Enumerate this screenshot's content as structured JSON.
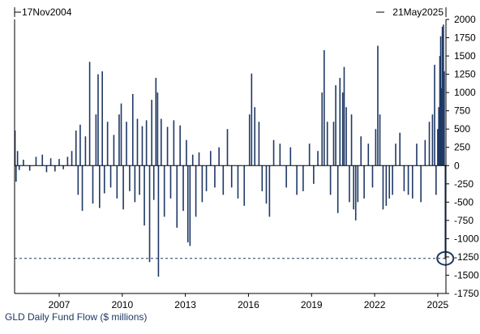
{
  "caption": "GLD Daily Fund Flow ($ millions)",
  "colors": {
    "bar": "#1f3864",
    "axis": "#000000",
    "zero_line": "#000000",
    "reference_line": "#1f3864",
    "highlight": "#1f3864"
  },
  "chart_data": {
    "type": "bar",
    "title": "",
    "xlabel": "",
    "ylabel": "",
    "start_label": "17Nov2004",
    "end_label": "21May2025",
    "x_range": [
      2004.88,
      2025.39
    ],
    "ylim": [
      -1750,
      2000
    ],
    "y_ticks": [
      2000,
      1750,
      1500,
      1250,
      1000,
      750,
      500,
      250,
      0,
      -250,
      -500,
      -750,
      -1000,
      -1250,
      -1500,
      -1750
    ],
    "x_ticks": [
      {
        "year": 2007,
        "label": "2007"
      },
      {
        "year": 2010,
        "label": "2010"
      },
      {
        "year": 2013,
        "label": "2013"
      },
      {
        "year": 2016,
        "label": "2016"
      },
      {
        "year": 2019,
        "label": "2019"
      },
      {
        "year": 2022,
        "label": "2022"
      },
      {
        "year": 2025,
        "label": "2025"
      }
    ],
    "reference_line": {
      "value": -1270,
      "style": "dashed"
    },
    "highlight": {
      "x": 2025.36,
      "y": -1270,
      "shape": "circle"
    },
    "series": [
      {
        "flows": [
          [
            2004.9,
            480
          ],
          [
            2004.95,
            -220
          ],
          [
            2005.02,
            200
          ],
          [
            2005.1,
            -60
          ],
          [
            2005.3,
            80
          ],
          [
            2005.6,
            -70
          ],
          [
            2005.9,
            120
          ],
          [
            2006.2,
            150
          ],
          [
            2006.4,
            -90
          ],
          [
            2006.6,
            100
          ],
          [
            2006.8,
            -80
          ],
          [
            2007.0,
            90
          ],
          [
            2007.2,
            -50
          ],
          [
            2007.4,
            120
          ],
          [
            2007.6,
            200
          ],
          [
            2007.8,
            480
          ],
          [
            2007.9,
            -400
          ],
          [
            2008.0,
            560
          ],
          [
            2008.1,
            -620
          ],
          [
            2008.25,
            400
          ],
          [
            2008.45,
            1420
          ],
          [
            2008.6,
            -520
          ],
          [
            2008.75,
            700
          ],
          [
            2008.85,
            1250
          ],
          [
            2008.92,
            -580
          ],
          [
            2009.05,
            1290
          ],
          [
            2009.15,
            -380
          ],
          [
            2009.3,
            600
          ],
          [
            2009.45,
            -300
          ],
          [
            2009.6,
            420
          ],
          [
            2009.75,
            -450
          ],
          [
            2009.85,
            700
          ],
          [
            2009.95,
            850
          ],
          [
            2010.05,
            -600
          ],
          [
            2010.2,
            600
          ],
          [
            2010.35,
            -350
          ],
          [
            2010.5,
            980
          ],
          [
            2010.6,
            -500
          ],
          [
            2010.72,
            640
          ],
          [
            2010.82,
            -400
          ],
          [
            2010.95,
            540
          ],
          [
            2011.05,
            -820
          ],
          [
            2011.15,
            620
          ],
          [
            2011.3,
            -1320
          ],
          [
            2011.4,
            900
          ],
          [
            2011.5,
            -470
          ],
          [
            2011.6,
            1200
          ],
          [
            2011.68,
            1000
          ],
          [
            2011.72,
            -1520
          ],
          [
            2011.85,
            640
          ],
          [
            2012.0,
            -700
          ],
          [
            2012.15,
            530
          ],
          [
            2012.3,
            -450
          ],
          [
            2012.45,
            620
          ],
          [
            2012.6,
            -850
          ],
          [
            2012.75,
            550
          ],
          [
            2012.9,
            -620
          ],
          [
            2013.05,
            350
          ],
          [
            2013.12,
            -1050
          ],
          [
            2013.22,
            -1100
          ],
          [
            2013.35,
            150
          ],
          [
            2013.5,
            -700
          ],
          [
            2013.65,
            180
          ],
          [
            2013.8,
            -500
          ],
          [
            2014.0,
            -350
          ],
          [
            2014.2,
            200
          ],
          [
            2014.4,
            -300
          ],
          [
            2014.6,
            250
          ],
          [
            2014.8,
            -400
          ],
          [
            2015.0,
            500
          ],
          [
            2015.2,
            -300
          ],
          [
            2015.5,
            -450
          ],
          [
            2015.8,
            -550
          ],
          [
            2016.05,
            700
          ],
          [
            2016.15,
            1260
          ],
          [
            2016.3,
            800
          ],
          [
            2016.5,
            600
          ],
          [
            2016.65,
            -350
          ],
          [
            2016.85,
            -520
          ],
          [
            2017.0,
            -700
          ],
          [
            2017.2,
            350
          ],
          [
            2017.5,
            300
          ],
          [
            2017.8,
            -300
          ],
          [
            2018.0,
            250
          ],
          [
            2018.3,
            -400
          ],
          [
            2018.6,
            -350
          ],
          [
            2018.9,
            300
          ],
          [
            2019.1,
            -250
          ],
          [
            2019.3,
            200
          ],
          [
            2019.5,
            1000
          ],
          [
            2019.6,
            1580
          ],
          [
            2019.75,
            600
          ],
          [
            2019.9,
            -400
          ],
          [
            2020.05,
            600
          ],
          [
            2020.15,
            1100
          ],
          [
            2020.25,
            -650
          ],
          [
            2020.35,
            1200
          ],
          [
            2020.48,
            1000
          ],
          [
            2020.55,
            1350
          ],
          [
            2020.65,
            800
          ],
          [
            2020.8,
            -500
          ],
          [
            2020.9,
            700
          ],
          [
            2021.0,
            -600
          ],
          [
            2021.1,
            -750
          ],
          [
            2021.2,
            -500
          ],
          [
            2021.35,
            400
          ],
          [
            2021.5,
            -450
          ],
          [
            2021.7,
            300
          ],
          [
            2021.9,
            -300
          ],
          [
            2022.05,
            500
          ],
          [
            2022.15,
            1640
          ],
          [
            2022.25,
            700
          ],
          [
            2022.4,
            -600
          ],
          [
            2022.55,
            -550
          ],
          [
            2022.7,
            -450
          ],
          [
            2022.85,
            -400
          ],
          [
            2023.0,
            300
          ],
          [
            2023.2,
            450
          ],
          [
            2023.4,
            -350
          ],
          [
            2023.6,
            -400
          ],
          [
            2023.8,
            -450
          ],
          [
            2024.0,
            300
          ],
          [
            2024.2,
            -500
          ],
          [
            2024.4,
            350
          ],
          [
            2024.6,
            600
          ],
          [
            2024.75,
            700
          ],
          [
            2024.85,
            1380
          ],
          [
            2024.92,
            -400
          ],
          [
            2025.0,
            500
          ],
          [
            2025.05,
            800
          ],
          [
            2025.1,
            1500
          ],
          [
            2025.14,
            1770
          ],
          [
            2025.18,
            1060
          ],
          [
            2025.22,
            1900
          ],
          [
            2025.27,
            1930
          ],
          [
            2025.31,
            1290
          ],
          [
            2025.36,
            -1280
          ]
        ]
      }
    ]
  }
}
